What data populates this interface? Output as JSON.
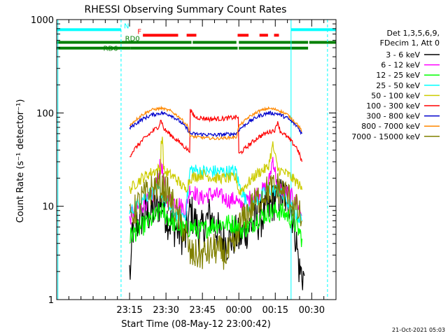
{
  "chart_data": {
    "type": "line",
    "title": "RHESSI Observing Summary Count Rates",
    "xlabel": "Start Time (08-May-12 23:00:42)",
    "ylabel": "Count Rate (s⁻¹ detector⁻¹)",
    "yscale": "log",
    "ylim": [
      1,
      1000
    ],
    "xlim_minutes_after_23_00": [
      -15,
      100
    ],
    "x_ticks": [
      {
        "t": 15,
        "label": "23:15"
      },
      {
        "t": 30,
        "label": "23:30"
      },
      {
        "t": 45,
        "label": "23:45"
      },
      {
        "t": 60,
        "label": "00:00"
      },
      {
        "t": 75,
        "label": "00:15"
      },
      {
        "t": 90,
        "label": "00:30"
      }
    ],
    "y_ticks": [
      {
        "v": 1,
        "label": "1"
      },
      {
        "v": 10,
        "label": "10"
      },
      {
        "v": 100,
        "label": "100"
      },
      {
        "v": 1000,
        "label": "1000"
      }
    ],
    "grid": false,
    "legend_position": "right",
    "legend_header": [
      "Det 1,3,5,6,9,",
      "FDecim 1, Att 0"
    ],
    "timestamp": "21-Oct-2021 05:03",
    "flags": {
      "N": {
        "label": "N",
        "color": "#00ffff",
        "segments": [
          [
            -15,
            11.5
          ],
          [
            81.5,
            100
          ]
        ]
      },
      "F": {
        "label": "F",
        "color": "#ff0000",
        "segments": [
          [
            20.5,
            35
          ],
          [
            38.5,
            42.5
          ],
          [
            59.5,
            64
          ],
          [
            68.5,
            72
          ],
          [
            74.5,
            76.5
          ]
        ]
      },
      "RD0": {
        "label": "RD0",
        "color": "#008000",
        "segments": [
          [
            -15,
            40.5
          ],
          [
            41,
            59
          ],
          [
            60,
            88.5
          ],
          [
            89,
            100
          ]
        ]
      },
      "RD6": {
        "label": "RD6",
        "color": "#008000",
        "segments": [
          [
            -15,
            15.5
          ],
          [
            15.5,
            59.5
          ],
          [
            60,
            88.5
          ]
        ]
      }
    },
    "saa_lines": {
      "color": "#00ffff",
      "solid": [
        -14.5,
        81.5
      ],
      "dashed": [
        11.5,
        96.5
      ]
    },
    "series": [
      {
        "name": "3 - 6 keV",
        "color": "#000000",
        "points": [
          [
            15,
            2
          ],
          [
            16,
            5.5
          ],
          [
            20,
            7.5
          ],
          [
            25,
            9
          ],
          [
            28,
            11
          ],
          [
            31,
            7
          ],
          [
            35,
            5.5
          ],
          [
            38,
            4.5
          ],
          [
            40,
            9
          ],
          [
            44,
            5
          ],
          [
            48,
            8
          ],
          [
            52,
            5
          ],
          [
            55,
            4
          ],
          [
            59,
            5
          ],
          [
            60,
            4.5
          ],
          [
            64,
            6
          ],
          [
            68,
            7
          ],
          [
            72,
            9
          ],
          [
            75,
            12
          ],
          [
            78,
            13
          ],
          [
            81,
            11
          ],
          [
            83,
            6
          ],
          [
            85,
            2
          ],
          [
            87,
            1.8
          ]
        ]
      },
      {
        "name": "6 - 12 keV",
        "color": "#ff00ff",
        "points": [
          [
            15,
            7
          ],
          [
            16,
            8.5
          ],
          [
            20,
            10
          ],
          [
            25,
            13
          ],
          [
            28,
            30
          ],
          [
            30,
            12
          ],
          [
            35,
            11
          ],
          [
            38,
            9
          ],
          [
            40,
            16
          ],
          [
            44,
            12
          ],
          [
            48,
            13.5
          ],
          [
            52,
            13
          ],
          [
            56,
            11.5
          ],
          [
            59,
            12
          ],
          [
            60,
            10
          ],
          [
            64,
            12
          ],
          [
            68,
            14
          ],
          [
            72,
            16
          ],
          [
            74,
            33
          ],
          [
            76,
            16
          ],
          [
            80,
            14
          ],
          [
            84,
            11
          ],
          [
            86,
            8
          ]
        ]
      },
      {
        "name": "12 - 25 keV",
        "color": "#00ff00",
        "points": [
          [
            15,
            4.5
          ],
          [
            16,
            5
          ],
          [
            20,
            6
          ],
          [
            25,
            7.5
          ],
          [
            28,
            9
          ],
          [
            30,
            8
          ],
          [
            35,
            6
          ],
          [
            38,
            5.5
          ],
          [
            40,
            6
          ],
          [
            45,
            5.5
          ],
          [
            50,
            6.5
          ],
          [
            55,
            6.5
          ],
          [
            59,
            6.5
          ],
          [
            60,
            5.5
          ],
          [
            64,
            6
          ],
          [
            68,
            7.5
          ],
          [
            72,
            8.5
          ],
          [
            76,
            9
          ],
          [
            80,
            8
          ],
          [
            84,
            6
          ],
          [
            86,
            4.5
          ]
        ]
      },
      {
        "name": "25 - 50 keV",
        "color": "#00ffff",
        "points": [
          [
            15,
            8
          ],
          [
            16,
            9
          ],
          [
            20,
            12
          ],
          [
            24,
            14
          ],
          [
            27,
            15
          ],
          [
            30,
            11
          ],
          [
            34,
            8
          ],
          [
            38,
            8
          ],
          [
            40,
            25
          ],
          [
            44,
            23.5
          ],
          [
            50,
            23.5
          ],
          [
            55,
            23.5
          ],
          [
            59,
            23.5
          ],
          [
            60,
            17
          ],
          [
            64,
            10
          ],
          [
            68,
            12
          ],
          [
            72,
            15
          ],
          [
            76,
            15
          ],
          [
            80,
            11
          ],
          [
            84,
            8
          ],
          [
            86,
            7
          ]
        ]
      },
      {
        "name": "50 - 100 keV",
        "color": "#cccc00",
        "points": [
          [
            15,
            15
          ],
          [
            16,
            16
          ],
          [
            20,
            20
          ],
          [
            24,
            23
          ],
          [
            27,
            25
          ],
          [
            28,
            50
          ],
          [
            29,
            24
          ],
          [
            34,
            20
          ],
          [
            38,
            15
          ],
          [
            40,
            20
          ],
          [
            45,
            22
          ],
          [
            50,
            20
          ],
          [
            55,
            20
          ],
          [
            59,
            20
          ],
          [
            60,
            14
          ],
          [
            64,
            18
          ],
          [
            68,
            23
          ],
          [
            72,
            26
          ],
          [
            74,
            45
          ],
          [
            76,
            25
          ],
          [
            80,
            22
          ],
          [
            84,
            18
          ],
          [
            86,
            15
          ]
        ]
      },
      {
        "name": "100 - 300 keV",
        "color": "#ff0000",
        "points": [
          [
            15,
            34
          ],
          [
            16,
            38
          ],
          [
            20,
            50
          ],
          [
            24,
            62
          ],
          [
            27,
            72
          ],
          [
            28,
            85
          ],
          [
            29,
            68
          ],
          [
            33,
            55
          ],
          [
            37,
            45
          ],
          [
            39,
            40
          ],
          [
            40,
            105
          ],
          [
            42,
            90
          ],
          [
            48,
            86
          ],
          [
            54,
            87
          ],
          [
            59,
            90
          ],
          [
            60,
            36
          ],
          [
            64,
            45
          ],
          [
            68,
            55
          ],
          [
            72,
            62
          ],
          [
            75,
            66
          ],
          [
            76,
            82
          ],
          [
            77,
            64
          ],
          [
            80,
            55
          ],
          [
            84,
            42
          ],
          [
            86,
            30
          ]
        ]
      },
      {
        "name": "300 - 800 keV",
        "color": "#0000cc",
        "points": [
          [
            15,
            68
          ],
          [
            16,
            72
          ],
          [
            20,
            85
          ],
          [
            24,
            95
          ],
          [
            28,
            100
          ],
          [
            32,
            95
          ],
          [
            36,
            80
          ],
          [
            39,
            66
          ],
          [
            40,
            60
          ],
          [
            50,
            58
          ],
          [
            59,
            60
          ],
          [
            60,
            66
          ],
          [
            64,
            80
          ],
          [
            68,
            92
          ],
          [
            72,
            100
          ],
          [
            76,
            98
          ],
          [
            80,
            88
          ],
          [
            84,
            72
          ],
          [
            86,
            60
          ]
        ]
      },
      {
        "name": "800 - 7000 keV",
        "color": "#ff8800",
        "points": [
          [
            15,
            72
          ],
          [
            16,
            78
          ],
          [
            20,
            95
          ],
          [
            24,
            108
          ],
          [
            28,
            112
          ],
          [
            32,
            105
          ],
          [
            36,
            88
          ],
          [
            39,
            72
          ],
          [
            40,
            56
          ],
          [
            50,
            53
          ],
          [
            59,
            55
          ],
          [
            60,
            72
          ],
          [
            64,
            90
          ],
          [
            68,
            104
          ],
          [
            72,
            112
          ],
          [
            76,
            108
          ],
          [
            80,
            96
          ],
          [
            84,
            76
          ],
          [
            86,
            64
          ]
        ]
      },
      {
        "name": "7000 - 15000 keV",
        "color": "#808000",
        "points": [
          [
            15,
            7
          ],
          [
            16,
            8
          ],
          [
            20,
            12
          ],
          [
            24,
            15
          ],
          [
            27,
            17
          ],
          [
            30,
            15
          ],
          [
            34,
            9
          ],
          [
            38,
            5
          ],
          [
            40,
            3
          ],
          [
            45,
            3
          ],
          [
            50,
            3.5
          ],
          [
            55,
            3
          ],
          [
            59,
            4
          ],
          [
            60,
            6
          ],
          [
            64,
            9
          ],
          [
            68,
            12
          ],
          [
            72,
            15
          ],
          [
            76,
            16
          ],
          [
            80,
            13
          ],
          [
            84,
            9
          ],
          [
            86,
            7
          ]
        ]
      }
    ]
  }
}
